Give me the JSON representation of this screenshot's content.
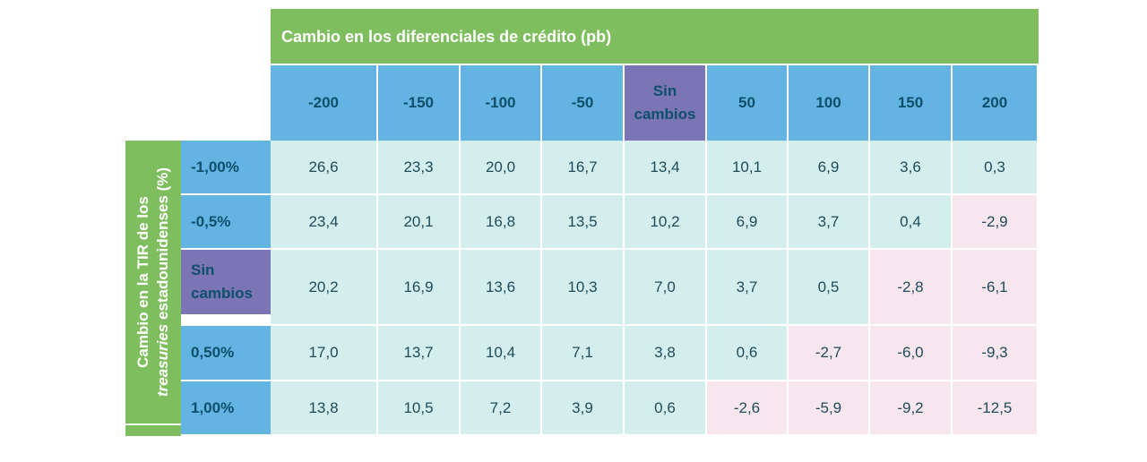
{
  "header": {
    "title": "Cambio en los diferenciales de crédito (pb)"
  },
  "row_axis": {
    "line1": "Cambio en la TIR de los",
    "line2_italic": "treasuries",
    "line2_rest": " estadounidenses (%)"
  },
  "columns": [
    "-200",
    "-150",
    "-100",
    "-50",
    "Sin cambios",
    "50",
    "100",
    "150",
    "200"
  ],
  "rows": [
    {
      "label": "-1,00%",
      "values": [
        "26,6",
        "23,3",
        "20,0",
        "16,7",
        "13,4",
        "10,1",
        "6,9",
        "3,6",
        "0,3"
      ]
    },
    {
      "label": "-0,5%",
      "values": [
        "23,4",
        "20,1",
        "16,8",
        "13,5",
        "10,2",
        "6,9",
        "3,7",
        "0,4",
        "-2,9"
      ]
    },
    {
      "label": "Sin cambios",
      "values": [
        "20,2",
        "16,9",
        "13,6",
        "10,3",
        "7,0",
        "3,7",
        "0,5",
        "-2,8",
        "-6,1"
      ]
    },
    {
      "label": "0,50%",
      "values": [
        "17,0",
        "13,7",
        "10,4",
        "7,1",
        "3,8",
        "0,6",
        "-2,7",
        "-6,0",
        "-9,3"
      ]
    },
    {
      "label": "1,00%",
      "values": [
        "13,8",
        "10,5",
        "7,2",
        "3,9",
        "0,6",
        "-2,6",
        "-5,9",
        "-9,2",
        "-12,5"
      ]
    }
  ],
  "colors": {
    "header_green": "#7fbe5e",
    "axis_blue": "#63b3e3",
    "neutral_purple": "#7b75b6",
    "positive_cell": "#d3eeec",
    "negative_cell": "#f8e6ee",
    "dark_text": "#0e4f6a"
  }
}
